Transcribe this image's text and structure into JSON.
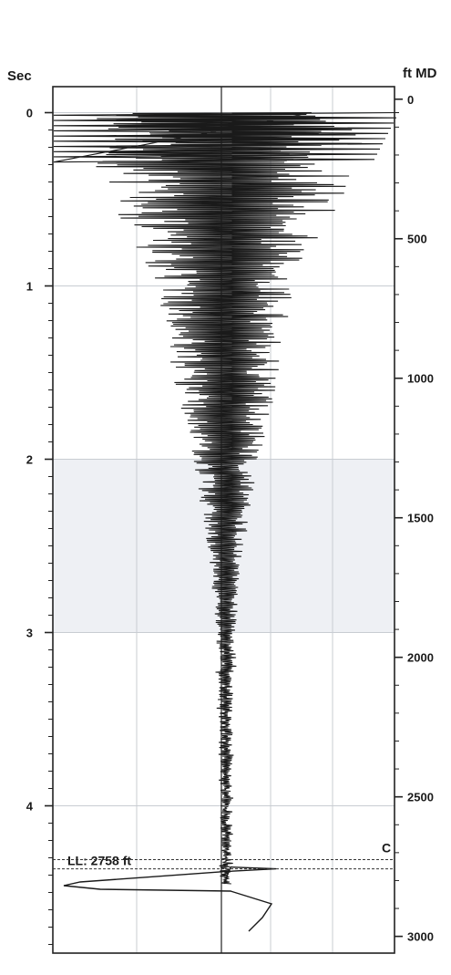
{
  "chart_data": {
    "type": "line",
    "left_axis": {
      "title": "Sec",
      "range": [
        -0.15,
        4.85
      ],
      "ticks": [
        "0",
        "1",
        "2",
        "3",
        "4"
      ],
      "tick_values": [
        0,
        1,
        2,
        3,
        4
      ]
    },
    "right_axis": {
      "title": "ft MD",
      "range": [
        -45,
        3060
      ],
      "ticks": [
        "0",
        "500",
        "1000",
        "1500",
        "2000",
        "2500",
        "3000"
      ],
      "tick_values": [
        0,
        500,
        1000,
        1500,
        2000,
        2500,
        3000
      ]
    },
    "grid": true,
    "shaded_band_sec": [
      2,
      3
    ],
    "annotations": [
      {
        "text": "LL: 2758 ft",
        "depth_ft": 2758
      },
      {
        "text": "C",
        "depth_ft": 2725
      }
    ],
    "envelope": [
      {
        "t": 0.0,
        "amp": 1.0
      },
      {
        "t": 0.5,
        "amp": 0.75
      },
      {
        "t": 1.0,
        "amp": 0.45
      },
      {
        "t": 1.5,
        "amp": 0.35
      },
      {
        "t": 2.0,
        "amp": 0.22
      },
      {
        "t": 2.5,
        "amp": 0.12
      },
      {
        "t": 3.0,
        "amp": 0.06
      },
      {
        "t": 3.5,
        "amp": 0.04
      },
      {
        "t": 4.0,
        "amp": 0.035
      },
      {
        "t": 4.4,
        "amp": 0.03
      }
    ],
    "colors": {
      "trace": "#1a1a1a",
      "grid": "#c8ccd2",
      "band": "#eef0f4",
      "axis": "#222222"
    }
  }
}
